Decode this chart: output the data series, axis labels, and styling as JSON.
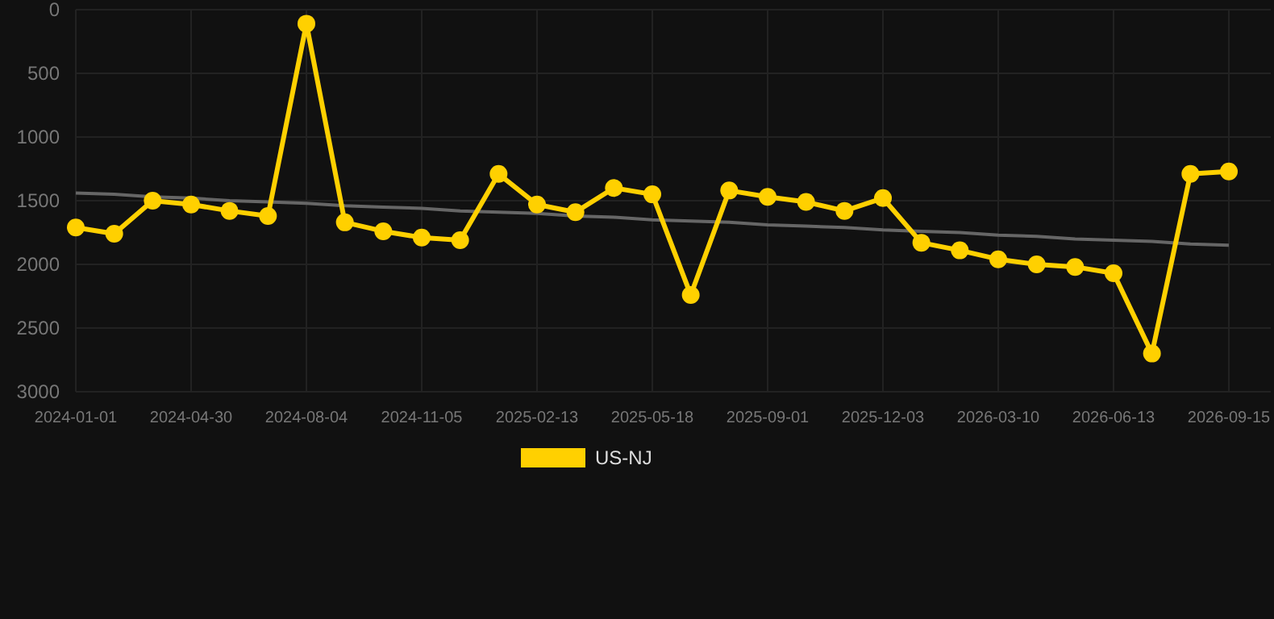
{
  "chart_data": {
    "type": "line",
    "categories": [
      "2024-01-01",
      null,
      null,
      "2024-04-30",
      null,
      null,
      "2024-08-04",
      null,
      null,
      "2024-11-05",
      null,
      null,
      "2025-02-13",
      null,
      null,
      "2025-05-18",
      null,
      null,
      "2025-09-01",
      null,
      null,
      "2025-12-03",
      null,
      null,
      "2026-03-10",
      null,
      null,
      "2026-06-13",
      null,
      null,
      "2026-09-15"
    ],
    "series": [
      {
        "name": "US-NJ",
        "color": "#ffd000",
        "values": [
          1710,
          1760,
          1500,
          1530,
          1580,
          1620,
          110,
          1670,
          1740,
          1790,
          1810,
          1290,
          1530,
          1590,
          1400,
          1450,
          2240,
          1420,
          1470,
          1510,
          1580,
          1480,
          1830,
          1890,
          1960,
          2000,
          2020,
          2070,
          2700,
          1290,
          1270
        ]
      },
      {
        "type": "line",
        "color": "#666666",
        "values": [
          1440,
          1450,
          1470,
          1480,
          1500,
          1510,
          1520,
          1540,
          1550,
          1560,
          1580,
          1590,
          1600,
          1620,
          1630,
          1650,
          1660,
          1670,
          1690,
          1700,
          1710,
          1730,
          1740,
          1750,
          1770,
          1780,
          1800,
          1810,
          1820,
          1840,
          1850
        ],
        "marker": "none"
      }
    ],
    "ylim": [
      3000,
      0
    ],
    "yticks": [
      0,
      500,
      1000,
      1500,
      2000,
      2500,
      3000
    ],
    "grid": true,
    "legend": "bottom",
    "marker": "circle",
    "line_style": "solid"
  }
}
